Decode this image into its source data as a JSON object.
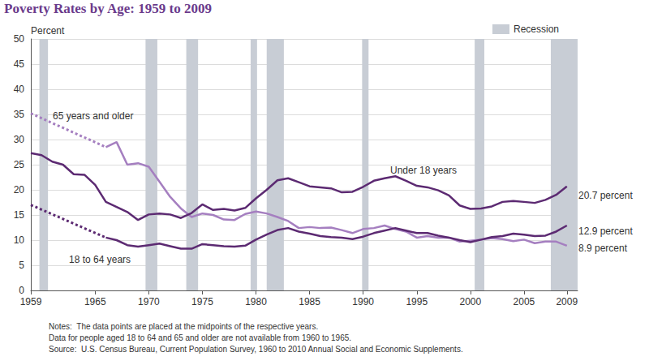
{
  "chart_data": {
    "type": "line",
    "title": "Poverty Rates by Age: 1959 to 2009",
    "ylabel": "Percent",
    "x": [
      1959,
      1960,
      1961,
      1962,
      1963,
      1964,
      1965,
      1966,
      1967,
      1968,
      1969,
      1970,
      1971,
      1972,
      1973,
      1974,
      1975,
      1976,
      1977,
      1978,
      1979,
      1980,
      1981,
      1982,
      1983,
      1984,
      1985,
      1986,
      1987,
      1988,
      1989,
      1990,
      1991,
      1992,
      1993,
      1994,
      1995,
      1996,
      1997,
      1998,
      1999,
      2000,
      2001,
      2002,
      2003,
      2004,
      2005,
      2006,
      2007,
      2008,
      2009
    ],
    "series": [
      {
        "name": "65 years and older",
        "color": "#a57fc0",
        "values": [
          35.2,
          null,
          null,
          null,
          null,
          null,
          null,
          28.5,
          29.5,
          25.0,
          25.3,
          24.6,
          21.6,
          18.6,
          16.3,
          14.6,
          15.3,
          15.0,
          14.1,
          14.0,
          15.2,
          15.7,
          15.3,
          14.6,
          13.8,
          12.4,
          12.6,
          12.4,
          12.5,
          12.0,
          11.4,
          12.2,
          12.4,
          12.9,
          12.2,
          11.7,
          10.5,
          10.8,
          10.5,
          10.5,
          9.7,
          9.9,
          10.1,
          10.4,
          10.2,
          9.8,
          10.1,
          9.4,
          9.7,
          9.7,
          8.9
        ]
      },
      {
        "name": "Under 18 years",
        "color": "#5c2a72",
        "values": [
          27.3,
          26.9,
          25.6,
          25.0,
          23.1,
          23.0,
          21.0,
          17.6,
          16.6,
          15.6,
          14.0,
          15.1,
          15.3,
          15.1,
          14.4,
          15.4,
          17.1,
          16.0,
          16.2,
          15.9,
          16.4,
          18.3,
          20.0,
          21.9,
          22.3,
          21.5,
          20.7,
          20.5,
          20.3,
          19.5,
          19.6,
          20.6,
          21.8,
          22.3,
          22.7,
          21.8,
          20.8,
          20.5,
          19.9,
          18.9,
          16.9,
          16.2,
          16.3,
          16.7,
          17.6,
          17.8,
          17.6,
          17.4,
          18.0,
          19.0,
          20.7
        ]
      },
      {
        "name": "18 to 64 years",
        "color": "#5c2a72",
        "values": [
          17.0,
          null,
          null,
          null,
          null,
          null,
          null,
          10.5,
          10.0,
          9.0,
          8.7,
          9.0,
          9.3,
          8.8,
          8.3,
          8.3,
          9.2,
          9.0,
          8.8,
          8.7,
          8.9,
          10.1,
          11.1,
          12.0,
          12.4,
          11.7,
          11.3,
          10.8,
          10.6,
          10.5,
          10.2,
          10.7,
          11.4,
          11.9,
          12.4,
          11.9,
          11.4,
          11.4,
          10.9,
          10.5,
          10.0,
          9.6,
          10.1,
          10.6,
          10.8,
          11.3,
          11.1,
          10.8,
          10.9,
          11.7,
          12.9
        ]
      }
    ],
    "annotations": [
      "20.7 percent",
      "12.9 percent",
      "8.9 percent"
    ],
    "recessions": {
      "label": "Recession",
      "color": "#c8cdd5",
      "periods": [
        [
          1959.8,
          1960.6
        ],
        [
          1969.7,
          1970.8
        ],
        [
          1973.5,
          1974.6
        ],
        [
          1979.5,
          1980.1
        ],
        [
          1981.0,
          1982.6
        ],
        [
          1989.9,
          1990.5
        ],
        [
          2000.4,
          2001.3
        ],
        [
          2007.5,
          2010
        ]
      ]
    },
    "xlim": [
      1959,
      2010
    ],
    "xticks": [
      1959,
      1965,
      1970,
      1975,
      1980,
      1985,
      1990,
      1995,
      2000,
      2005,
      2009
    ],
    "ylim": [
      0,
      50
    ],
    "yticks": [
      0,
      5,
      10,
      15,
      20,
      25,
      30,
      35,
      40,
      45,
      50
    ],
    "grid": true,
    "notes": [
      "Notes:  The data points are placed at the midpoints of the respective years.",
      "Data for people aged 18 to 64 and 65 and older are not available from 1960 to 1965."
    ],
    "source": "Source:  U.S. Census Bureau, Current Population Survey, 1960 to 2010 Annual Social and Economic Supplements."
  }
}
